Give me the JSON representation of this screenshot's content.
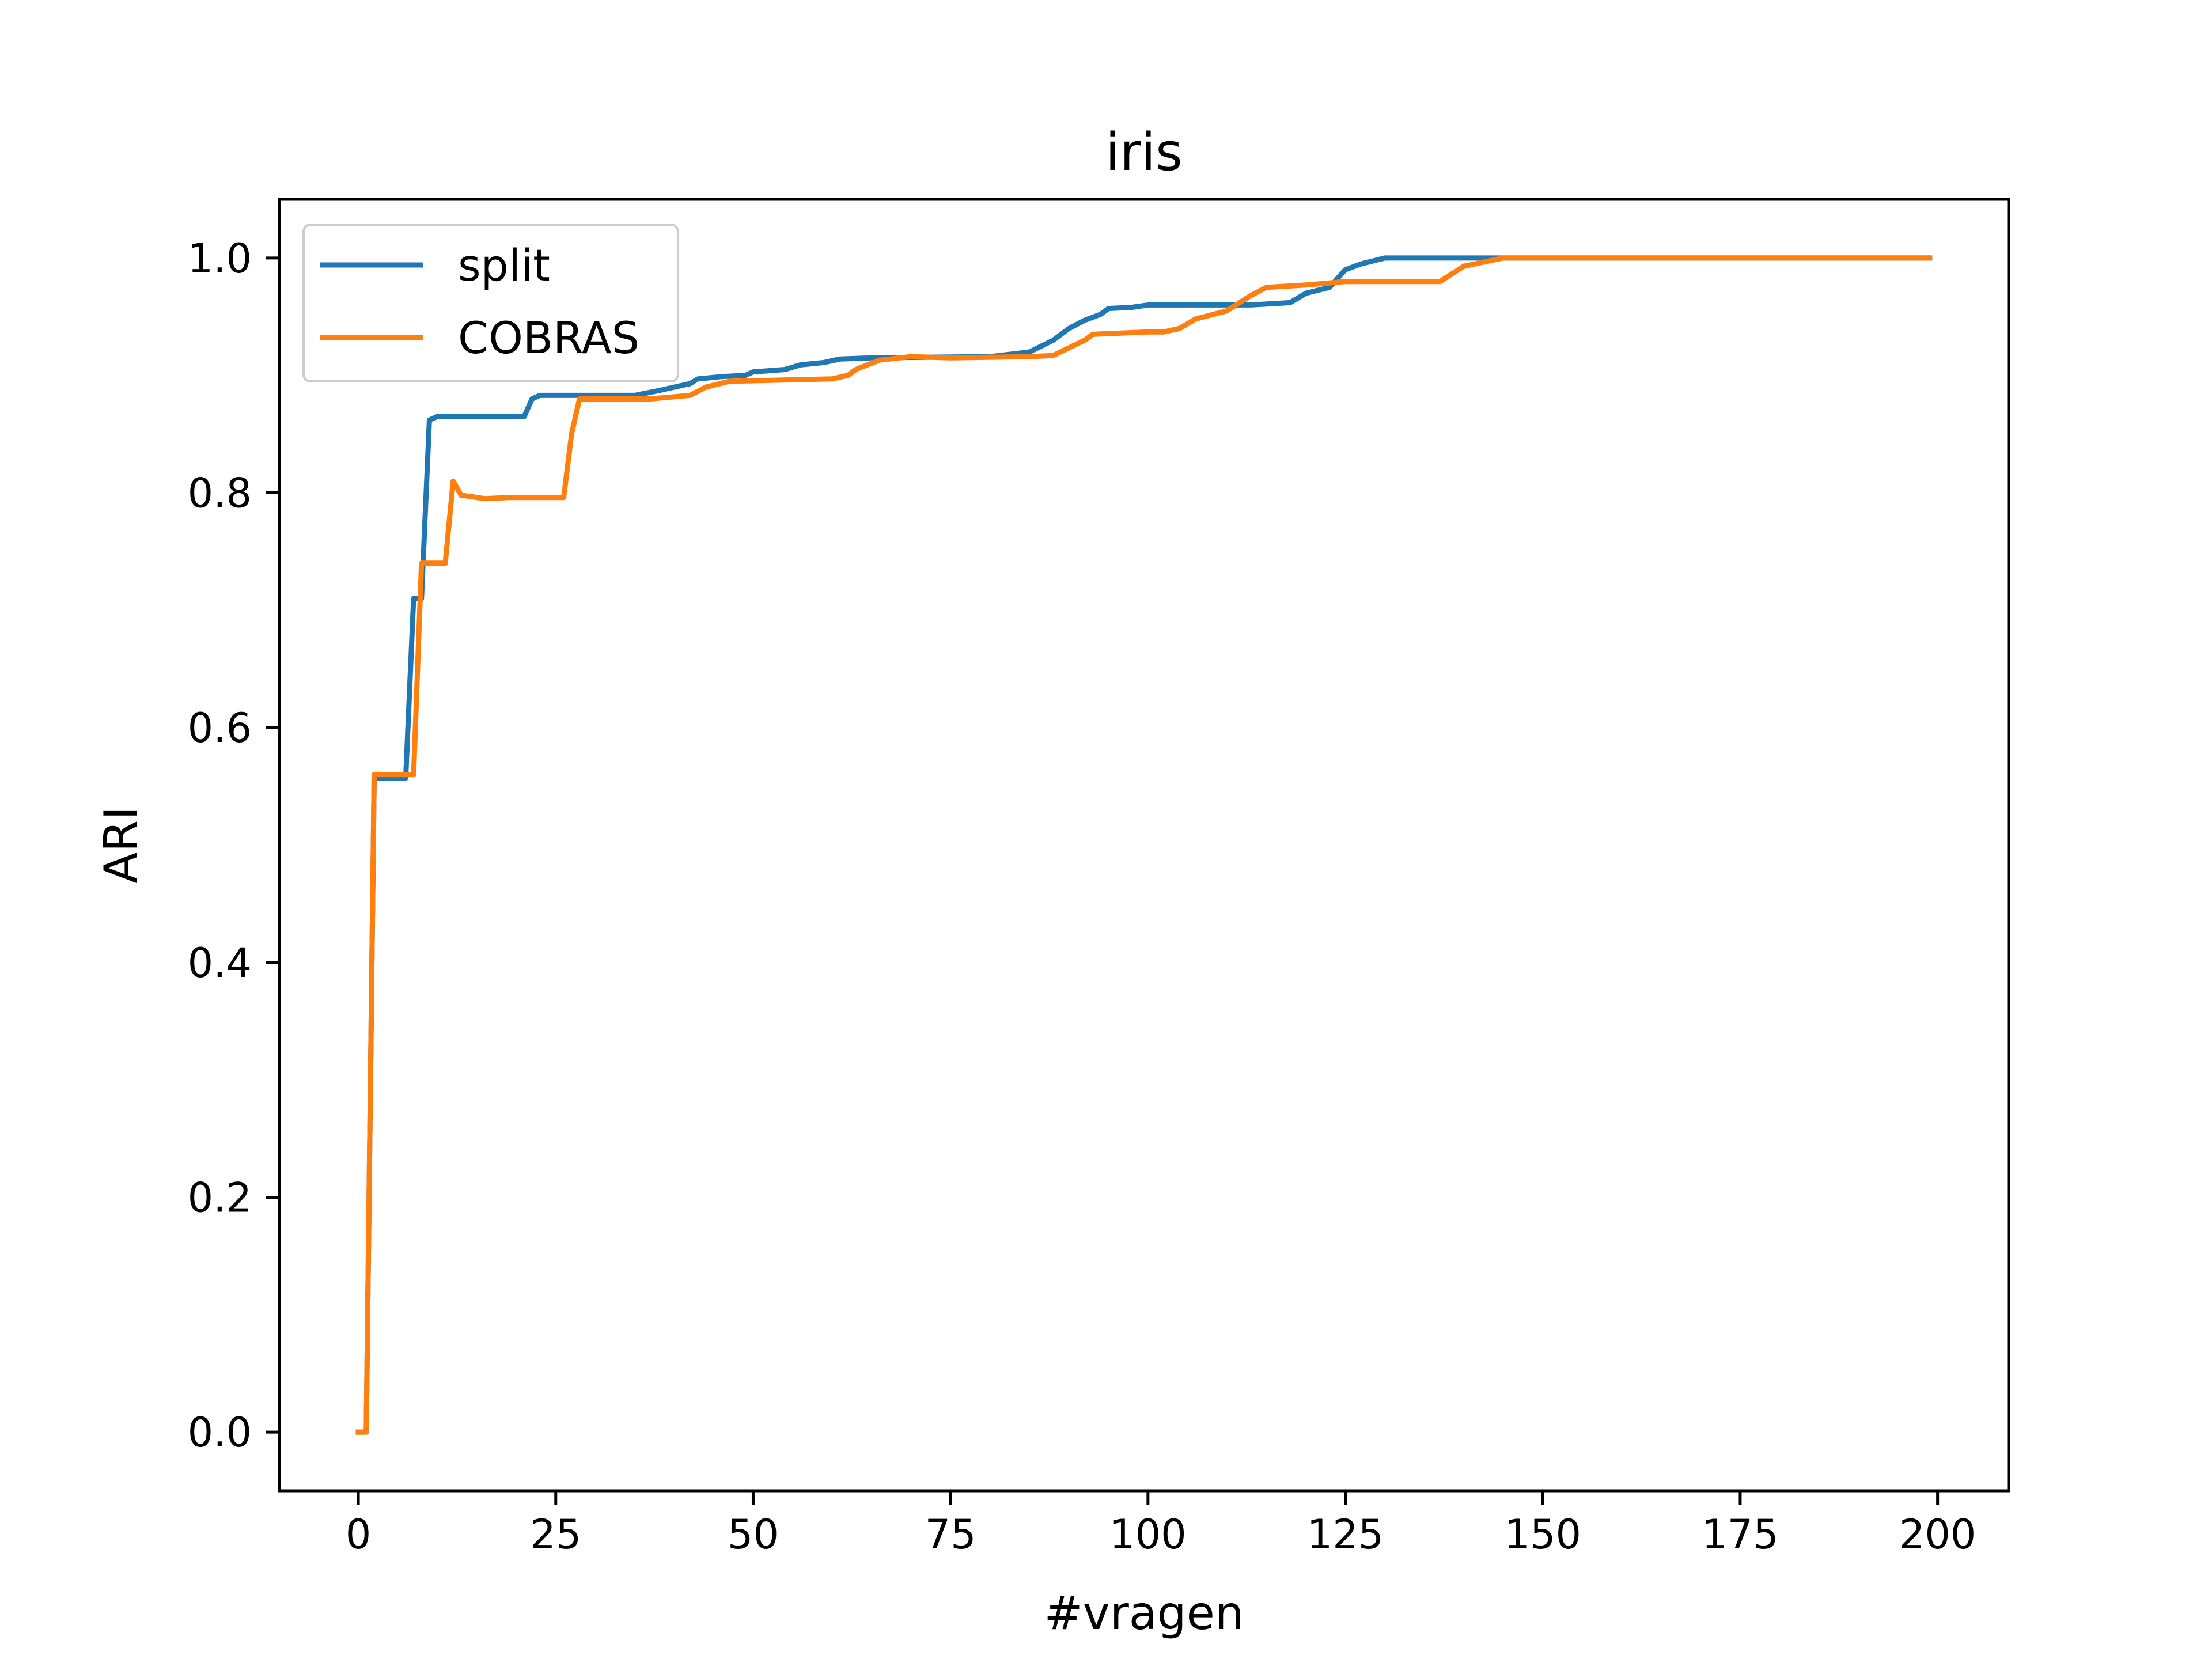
{
  "chart_data": {
    "type": "line",
    "title": "iris",
    "xlabel": "#vragen",
    "ylabel": "ARI",
    "xlim": [
      -10,
      209
    ],
    "ylim": [
      -0.05,
      1.05
    ],
    "xticks": [
      0,
      25,
      50,
      75,
      100,
      125,
      150,
      175,
      200
    ],
    "yticks": [
      0.0,
      0.2,
      0.4,
      0.6,
      0.8,
      1.0
    ],
    "xtick_labels": [
      "0",
      "25",
      "50",
      "75",
      "100",
      "125",
      "150",
      "175",
      "200"
    ],
    "ytick_labels": [
      "0.0",
      "0.2",
      "0.4",
      "0.6",
      "0.8",
      "1.0"
    ],
    "grid": false,
    "legend_position": "upper-left",
    "series": [
      {
        "name": "split",
        "color": "#1f77b4",
        "points": [
          [
            0,
            0.0
          ],
          [
            1,
            0.0
          ],
          [
            2,
            0.557
          ],
          [
            6,
            0.557
          ],
          [
            7,
            0.71
          ],
          [
            8,
            0.71
          ],
          [
            9,
            0.862
          ],
          [
            10,
            0.865
          ],
          [
            15,
            0.865
          ],
          [
            21,
            0.865
          ],
          [
            22,
            0.88
          ],
          [
            23,
            0.883
          ],
          [
            35,
            0.883
          ],
          [
            38,
            0.887
          ],
          [
            42,
            0.893
          ],
          [
            43,
            0.897
          ],
          [
            46,
            0.899
          ],
          [
            49,
            0.9
          ],
          [
            50,
            0.903
          ],
          [
            54,
            0.905
          ],
          [
            56,
            0.909
          ],
          [
            59,
            0.911
          ],
          [
            61,
            0.914
          ],
          [
            65,
            0.915
          ],
          [
            80,
            0.916
          ],
          [
            85,
            0.92
          ],
          [
            88,
            0.93
          ],
          [
            90,
            0.94
          ],
          [
            92,
            0.947
          ],
          [
            94,
            0.952
          ],
          [
            95,
            0.957
          ],
          [
            98,
            0.958
          ],
          [
            100,
            0.96
          ],
          [
            108,
            0.96
          ],
          [
            113,
            0.96
          ],
          [
            118,
            0.962
          ],
          [
            120,
            0.97
          ],
          [
            123,
            0.975
          ],
          [
            125,
            0.99
          ],
          [
            127,
            0.995
          ],
          [
            130,
            1.0
          ],
          [
            150,
            1.0
          ],
          [
            199,
            1.0
          ]
        ]
      },
      {
        "name": "COBRAS",
        "color": "#ff7f0e",
        "points": [
          [
            0,
            0.0
          ],
          [
            1,
            0.0
          ],
          [
            2,
            0.56
          ],
          [
            7,
            0.56
          ],
          [
            8,
            0.74
          ],
          [
            11,
            0.74
          ],
          [
            12,
            0.81
          ],
          [
            13,
            0.798
          ],
          [
            16,
            0.795
          ],
          [
            19,
            0.796
          ],
          [
            26,
            0.796
          ],
          [
            27,
            0.85
          ],
          [
            28,
            0.88
          ],
          [
            37,
            0.88
          ],
          [
            42,
            0.883
          ],
          [
            44,
            0.89
          ],
          [
            47,
            0.895
          ],
          [
            60,
            0.897
          ],
          [
            62,
            0.9
          ],
          [
            63,
            0.905
          ],
          [
            66,
            0.913
          ],
          [
            70,
            0.916
          ],
          [
            75,
            0.915
          ],
          [
            85,
            0.916
          ],
          [
            88,
            0.917
          ],
          [
            92,
            0.93
          ],
          [
            93,
            0.935
          ],
          [
            100,
            0.937
          ],
          [
            102,
            0.937
          ],
          [
            104,
            0.94
          ],
          [
            106,
            0.948
          ],
          [
            110,
            0.955
          ],
          [
            113,
            0.968
          ],
          [
            115,
            0.975
          ],
          [
            120,
            0.977
          ],
          [
            125,
            0.98
          ],
          [
            137,
            0.98
          ],
          [
            140,
            0.993
          ],
          [
            145,
            1.0
          ],
          [
            150,
            1.0
          ],
          [
            199,
            1.0
          ]
        ]
      }
    ]
  }
}
